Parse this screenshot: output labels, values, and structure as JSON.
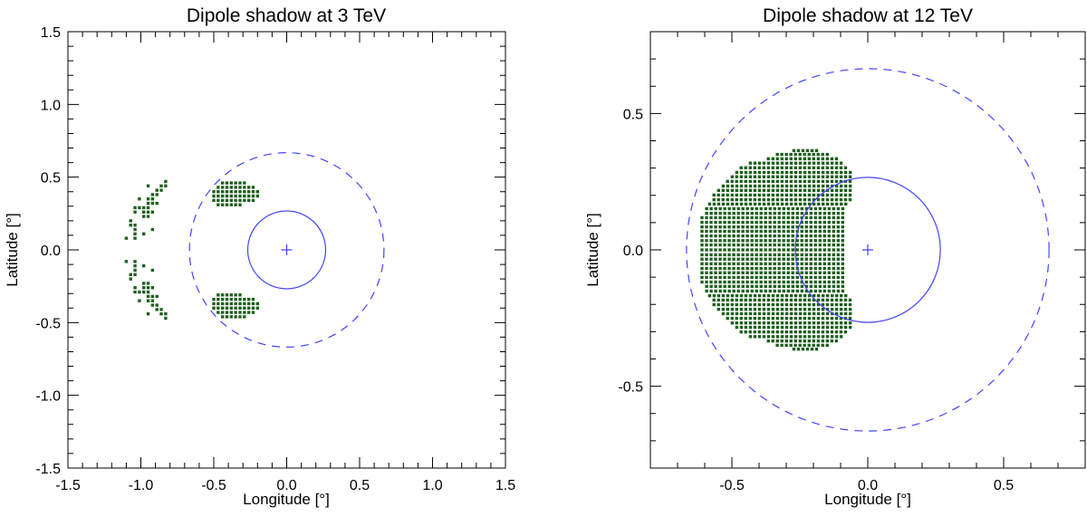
{
  "chart_data": [
    {
      "type": "scatter",
      "title": "Dipole shadow at 3 TeV",
      "xlabel": "Longitude [°]",
      "ylabel": "Latitude [°]",
      "xlim": [
        -1.5,
        1.5
      ],
      "ylim": [
        -1.5,
        1.5
      ],
      "xticks": [
        "-1.5",
        "-1.0",
        "-0.5",
        "0.0",
        "0.5",
        "1.0",
        "1.5"
      ],
      "yticks": [
        "-1.5",
        "-1.0",
        "-0.5",
        "0.0",
        "0.5",
        "1.0",
        "1.5"
      ],
      "minor_tick_step": 0.1,
      "center_marker": [
        0,
        0
      ],
      "circles": [
        {
          "name": "solid",
          "radius": 0.267,
          "style": "solid"
        },
        {
          "name": "dashed",
          "radius": 0.667,
          "style": "dashed"
        }
      ],
      "grid_step": 0.03,
      "symmetric_about_y0": true,
      "row_runs_upper": [
        [
          0.46,
          -0.44,
          -0.29
        ],
        [
          0.43,
          -0.47,
          -0.23
        ],
        [
          0.4,
          -0.5,
          -0.2
        ],
        [
          0.37,
          -0.5,
          -0.2
        ],
        [
          0.34,
          -0.5,
          -0.23
        ],
        [
          0.31,
          -0.47,
          -0.32
        ]
      ],
      "points_upper": [
        [
          -0.83,
          0.47
        ],
        [
          -0.95,
          0.44
        ],
        [
          -0.86,
          0.44
        ],
        [
          -0.83,
          0.44
        ],
        [
          -0.89,
          0.41
        ],
        [
          -0.86,
          0.41
        ],
        [
          -0.92,
          0.38
        ],
        [
          -0.89,
          0.38
        ],
        [
          -1.01,
          0.35
        ],
        [
          -0.95,
          0.35
        ],
        [
          -0.92,
          0.35
        ],
        [
          -0.95,
          0.32
        ],
        [
          -0.92,
          0.32
        ],
        [
          -0.89,
          0.32
        ],
        [
          -1.04,
          0.29
        ],
        [
          -1.01,
          0.29
        ],
        [
          -0.98,
          0.29
        ],
        [
          -0.95,
          0.29
        ],
        [
          -1.04,
          0.26
        ],
        [
          -0.98,
          0.26
        ],
        [
          -0.95,
          0.26
        ],
        [
          -0.92,
          0.26
        ],
        [
          -0.98,
          0.23
        ],
        [
          -0.95,
          0.23
        ],
        [
          -1.07,
          0.2
        ],
        [
          -1.07,
          0.17
        ],
        [
          -1.04,
          0.17
        ],
        [
          -1.04,
          0.14
        ],
        [
          -0.92,
          0.14
        ],
        [
          -1.04,
          0.11
        ],
        [
          -0.98,
          0.11
        ],
        [
          -1.1,
          0.08
        ],
        [
          -1.04,
          0.08
        ]
      ]
    },
    {
      "type": "scatter",
      "title": "Dipole shadow at 12 TeV",
      "xlabel": "Longitude [°]",
      "ylabel": "Latitude [°]",
      "xlim": [
        -0.8,
        0.8
      ],
      "ylim": [
        -0.8,
        0.8
      ],
      "xticks": [
        "-0.5",
        "0.0",
        "0.5"
      ],
      "yticks": [
        "-0.5",
        "0.0",
        "0.5"
      ],
      "minor_tick_step": 0.1,
      "center_marker": [
        0,
        0
      ],
      "circles": [
        {
          "name": "solid",
          "radius": 0.267,
          "style": "solid"
        },
        {
          "name": "dashed",
          "radius": 0.667,
          "style": "dashed"
        }
      ],
      "grid_step": 0.0167,
      "symmetric_about_y0": true,
      "row_runs_upper": [
        [
          0.364,
          -0.272,
          -0.182
        ],
        [
          0.35,
          -0.333,
          -0.138
        ],
        [
          0.334,
          -0.366,
          -0.104
        ],
        [
          0.318,
          -0.432,
          -0.088
        ],
        [
          0.301,
          -0.466,
          -0.071
        ],
        [
          0.284,
          -0.482,
          -0.054
        ],
        [
          0.268,
          -0.499,
          -0.054
        ],
        [
          0.251,
          -0.516,
          -0.054
        ],
        [
          0.234,
          -0.532,
          -0.054
        ],
        [
          0.218,
          -0.549,
          -0.054
        ],
        [
          0.201,
          -0.566,
          -0.054
        ],
        [
          0.184,
          -0.566,
          -0.054
        ],
        [
          0.168,
          -0.582,
          -0.071
        ],
        [
          0.151,
          -0.593,
          -0.088
        ],
        [
          0.134,
          -0.593,
          -0.088
        ],
        [
          0.118,
          -0.61,
          -0.088
        ],
        [
          0.101,
          -0.61,
          -0.088
        ],
        [
          0.084,
          -0.61,
          -0.088
        ],
        [
          0.068,
          -0.61,
          -0.088
        ],
        [
          0.051,
          -0.61,
          -0.088
        ],
        [
          0.034,
          -0.61,
          -0.088
        ],
        [
          0.018,
          -0.61,
          -0.088
        ],
        [
          0.0,
          -0.61,
          -0.088
        ]
      ],
      "points_upper": []
    }
  ],
  "colors": {
    "points": "#1f5f1f",
    "circles": "#4444ff",
    "axes": "#000000"
  }
}
